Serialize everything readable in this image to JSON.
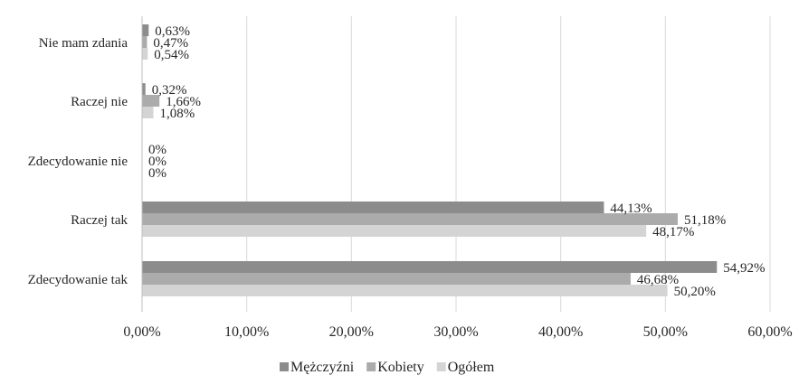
{
  "chart_data": {
    "type": "bar",
    "orientation": "horizontal",
    "categories": [
      "Zdecydowanie tak",
      "Raczej tak",
      "Zdecydowanie nie",
      "Raczej nie",
      "Nie mam zdania"
    ],
    "series": [
      {
        "name": "Mężczyźni",
        "color": "#8c8c8c",
        "values": [
          54.92,
          44.13,
          0,
          0.32,
          0.63
        ],
        "labels": [
          "54,92%",
          "44,13%",
          "0%",
          "0,32%",
          "0,63%"
        ]
      },
      {
        "name": "Kobiety",
        "color": "#ababab",
        "values": [
          46.68,
          51.18,
          0,
          1.66,
          0.47
        ],
        "labels": [
          "46,68%",
          "51,18%",
          "0%",
          "1,66%",
          "0,47%"
        ]
      },
      {
        "name": "Ogółem",
        "color": "#d4d4d4",
        "values": [
          50.2,
          48.17,
          0,
          1.08,
          0.54
        ],
        "labels": [
          "50,20%",
          "48,17%",
          "0%",
          "1,08%",
          "0,54%"
        ]
      }
    ],
    "xlim": [
      0,
      60
    ],
    "xticks": [
      0,
      10,
      20,
      30,
      40,
      50,
      60
    ],
    "xtick_labels": [
      "0,00%",
      "10,00%",
      "20,00%",
      "30,00%",
      "40,00%",
      "50,00%",
      "60,00%"
    ],
    "grid": "vertical",
    "legend_position": "bottom"
  }
}
